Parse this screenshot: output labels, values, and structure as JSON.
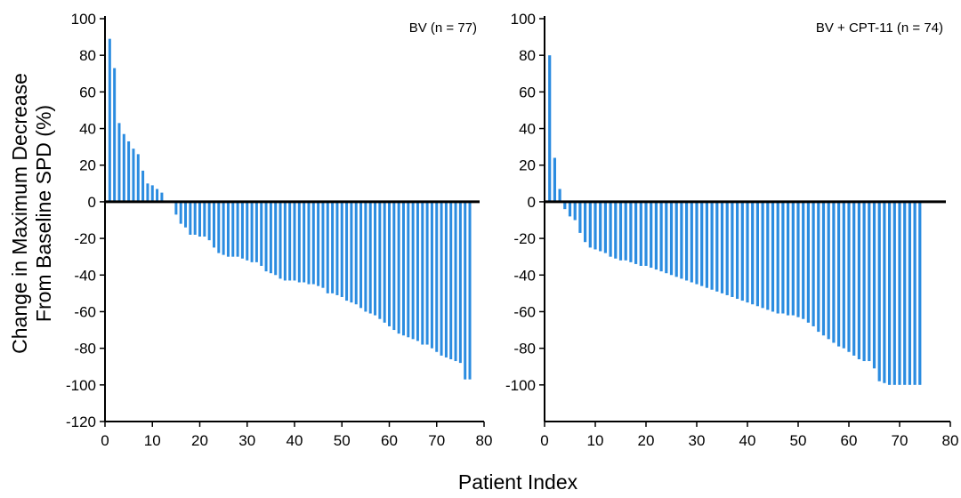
{
  "figure": {
    "ylabel_line1": "Change in Maximum Decrease",
    "ylabel_line2": "From Baseline SPD (%)",
    "xlabel": "Patient Index"
  },
  "chart_data": [
    {
      "type": "bar",
      "title": "BV (n = 77)",
      "xlabel": "Patient Index",
      "ylabel": "Change in Maximum Decrease From Baseline SPD (%)",
      "xlim": [
        0,
        80
      ],
      "ylim": [
        -120,
        100
      ],
      "xticks": [
        0,
        10,
        20,
        30,
        40,
        50,
        60,
        70,
        80
      ],
      "yticks": [
        100,
        80,
        60,
        40,
        20,
        0,
        -20,
        -40,
        -60,
        -80,
        -100,
        -120
      ],
      "x": [
        1,
        2,
        3,
        4,
        5,
        6,
        7,
        8,
        9,
        10,
        11,
        12,
        13,
        14,
        15,
        16,
        17,
        18,
        19,
        20,
        21,
        22,
        23,
        24,
        25,
        26,
        27,
        28,
        29,
        30,
        31,
        32,
        33,
        34,
        35,
        36,
        37,
        38,
        39,
        40,
        41,
        42,
        43,
        44,
        45,
        46,
        47,
        48,
        49,
        50,
        51,
        52,
        53,
        54,
        55,
        56,
        57,
        58,
        59,
        60,
        61,
        62,
        63,
        64,
        65,
        66,
        67,
        68,
        69,
        70,
        71,
        72,
        73,
        74,
        75,
        76,
        77
      ],
      "values": [
        89,
        73,
        43,
        37,
        33,
        29,
        26,
        17,
        10,
        9,
        7,
        5,
        0,
        0,
        -7,
        -12,
        -14,
        -18,
        -18,
        -19,
        -19,
        -21,
        -25,
        -28,
        -29,
        -30,
        -30,
        -30,
        -31,
        -32,
        -33,
        -33,
        -35,
        -38,
        -39,
        -40,
        -42,
        -43,
        -43,
        -43,
        -44,
        -44,
        -45,
        -45,
        -46,
        -47,
        -50,
        -50,
        -51,
        -52,
        -54,
        -55,
        -56,
        -58,
        -60,
        -61,
        -62,
        -64,
        -66,
        -68,
        -70,
        -72,
        -73,
        -74,
        -75,
        -76,
        -78,
        -78,
        -80,
        -82,
        -84,
        -85,
        -86,
        -87,
        -88,
        -97,
        -97
      ]
    },
    {
      "type": "bar",
      "title": "BV + CPT-11 (n = 74)",
      "xlabel": "Patient Index",
      "ylabel": "Change in Maximum Decrease From Baseline SPD (%)",
      "xlim": [
        0,
        80
      ],
      "ylim": [
        -120,
        100
      ],
      "xticks": [
        0,
        10,
        20,
        30,
        40,
        50,
        60,
        70,
        80
      ],
      "yticks": [
        100,
        80,
        60,
        40,
        20,
        0,
        -20,
        -40,
        -60,
        -80,
        -100
      ],
      "x": [
        1,
        2,
        3,
        4,
        5,
        6,
        7,
        8,
        9,
        10,
        11,
        12,
        13,
        14,
        15,
        16,
        17,
        18,
        19,
        20,
        21,
        22,
        23,
        24,
        25,
        26,
        27,
        28,
        29,
        30,
        31,
        32,
        33,
        34,
        35,
        36,
        37,
        38,
        39,
        40,
        41,
        42,
        43,
        44,
        45,
        46,
        47,
        48,
        49,
        50,
        51,
        52,
        53,
        54,
        55,
        56,
        57,
        58,
        59,
        60,
        61,
        62,
        63,
        64,
        65,
        66,
        67,
        68,
        69,
        70,
        71,
        72,
        73,
        74
      ],
      "values": [
        80,
        24,
        7,
        -4,
        -8,
        -10,
        -17,
        -22,
        -25,
        -26,
        -27,
        -28,
        -30,
        -31,
        -32,
        -32,
        -33,
        -34,
        -35,
        -35,
        -36,
        -37,
        -38,
        -39,
        -40,
        -41,
        -42,
        -43,
        -44,
        -45,
        -46,
        -47,
        -48,
        -49,
        -50,
        -51,
        -52,
        -53,
        -54,
        -55,
        -56,
        -57,
        -58,
        -59,
        -60,
        -61,
        -61,
        -62,
        -62,
        -63,
        -64,
        -66,
        -68,
        -71,
        -73,
        -75,
        -77,
        -79,
        -80,
        -82,
        -84,
        -86,
        -87,
        -87,
        -91,
        -98,
        -99,
        -100,
        -100,
        -100,
        -100,
        -100,
        -100,
        -100
      ]
    }
  ]
}
